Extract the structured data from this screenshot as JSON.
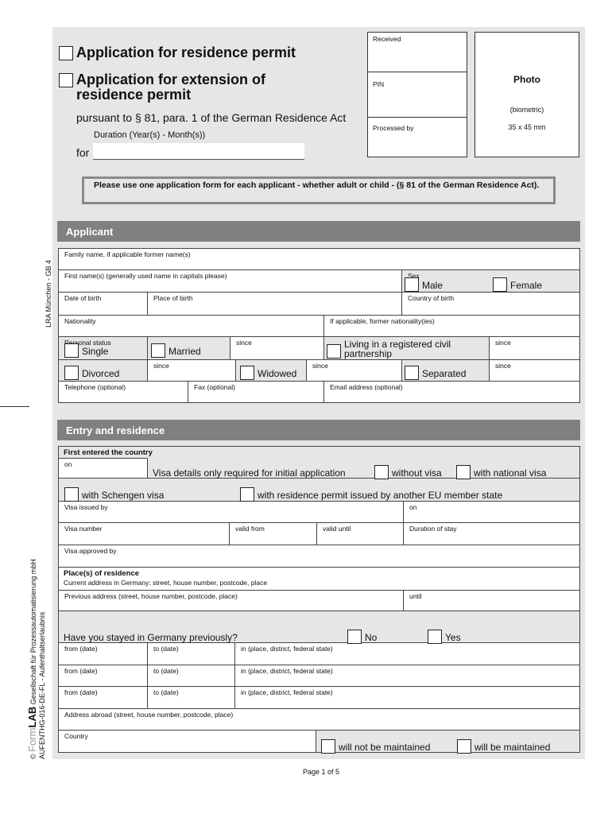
{
  "header": {
    "option_residence_permit": "Application for residence permit",
    "option_extension_line1": "Application for extension of",
    "option_extension_line2": "residence permit",
    "legal_basis": "pursuant to § 81, para. 1 of the German Residence Act",
    "duration_label": "Duration (Year(s) - Month(s))",
    "for_label": "for",
    "duration_value": ""
  },
  "office": {
    "received": "Received",
    "pin": "PIN",
    "processed_by": "Processed by"
  },
  "photo": {
    "title": "Photo",
    "biometric": "(biometric)",
    "size": "35 x 45 mm"
  },
  "notice": "Please use one application form for each applicant - whether adult or child - (§ 81 of the German Residence Act).",
  "sidebar": {
    "office_code": "LRA München - GB 4",
    "publisher_brand": "FormLAB",
    "publisher_prefix": "©",
    "publisher_name": "Gesellschaft für Prozessautomatisierung mbH",
    "form_code": "AUFENTHG-016-DE-FL - Aufenthaltserlaubnis"
  },
  "applicant": {
    "title": "Applicant",
    "family_name": "Family name, if applicable former name(s)",
    "first_names": "First name(s) (generally used name in capitals please)",
    "sex": "Sex",
    "male": "Male",
    "female": "Female",
    "date_of_birth": "Date of birth",
    "place_of_birth": "Place of birth",
    "country_of_birth": "Country of birth",
    "nationality": "Nationality",
    "former_nationality": "If applicable, former nationality(ies)",
    "personal_status": "Personal status",
    "single": "Single",
    "married": "Married",
    "since": "since",
    "civil_partnership_line1": "Living in a registered civil",
    "civil_partnership_line2": "partnership",
    "divorced": "Divorced",
    "widowed": "Widowed",
    "separated": "Separated",
    "telephone": "Telephone (optional)",
    "fax": "Fax (optional)",
    "email": "Email address (optional)"
  },
  "entry": {
    "title": "Entry and residence",
    "first_entered": "First entered the country",
    "on": "on",
    "visa_note": "Visa details only required for initial application",
    "without_visa": "without visa",
    "national_visa": "with national visa",
    "schengen_visa": "with Schengen visa",
    "eu_permit": "with residence permit issued by another EU member state",
    "visa_issued_by": "Visa issued by",
    "visa_number": "Visa number",
    "valid_from": "valid from",
    "valid_until": "valid until",
    "duration_of_stay": "Duration of stay",
    "visa_approved_by": "Visa approved by",
    "places_of_residence": "Place(s) of residence",
    "current_address": "Current address in Germany: street, house number, postcode, place",
    "previous_address": "Previous address (street, house number, postcode, place)",
    "until": "until",
    "stayed_before": "Have you stayed in Germany previously?",
    "no": "No",
    "yes": "Yes",
    "from_date": "from (date)",
    "to_date": "to (date)",
    "in_place": "in (place, district, federal state)",
    "address_abroad": "Address abroad (street, house number, postcode, place)",
    "country": "Country",
    "not_maintained": "will not be maintained",
    "maintained": "will be maintained"
  },
  "footer": {
    "page": "Page 1 of 5"
  },
  "colors": {
    "panel": "#e6e6e6",
    "section_header": "#808080"
  }
}
